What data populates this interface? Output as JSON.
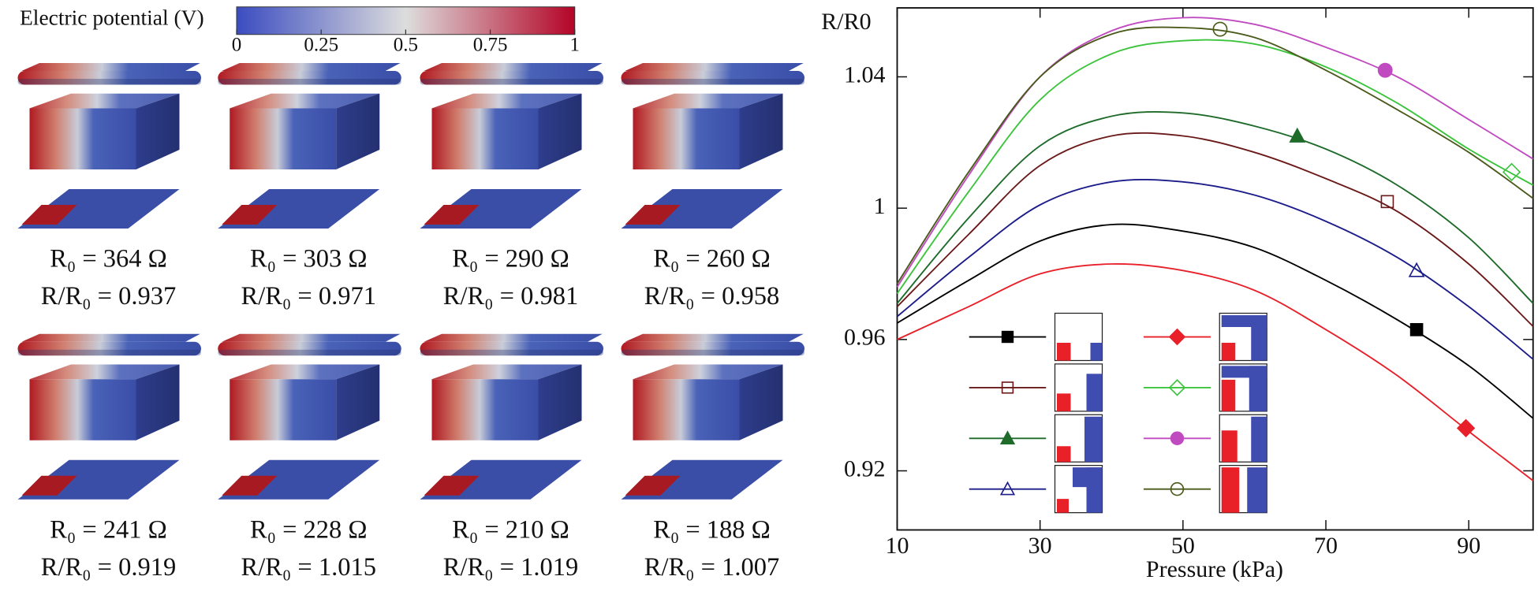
{
  "colorbar": {
    "title": "Electric potential (V)",
    "range": [
      0,
      1
    ],
    "ticks": [
      0,
      0.25,
      0.5,
      0.75,
      1
    ]
  },
  "panels": [
    {
      "r0": "R₀ = 364 Ω",
      "ratio": "R/R₀ = 0.937"
    },
    {
      "r0": "R₀ = 303 Ω",
      "ratio": "R/R₀ = 0.971"
    },
    {
      "r0": "R₀ = 290 Ω",
      "ratio": "R/R₀ = 0.981"
    },
    {
      "r0": "R₀ = 260 Ω",
      "ratio": "R/R₀ = 0.958"
    },
    {
      "r0": "R₀ = 241 Ω",
      "ratio": "R/R₀ = 0.919"
    },
    {
      "r0": "R₀ = 228 Ω",
      "ratio": "R/R₀ = 1.015"
    },
    {
      "r0": "R₀ = 210 Ω",
      "ratio": "R/R₀ = 1.019"
    },
    {
      "r0": "R₀ = 188 Ω",
      "ratio": "R/R₀ = 1.007"
    }
  ],
  "chart_data": {
    "type": "line",
    "y_label": "R/R0",
    "x_label": "Pressure (kPa)",
    "xlim": [
      10,
      99
    ],
    "xticks": [
      10,
      30,
      50,
      70,
      90
    ],
    "ylim": [
      0.902,
      1.061
    ],
    "yticks": [
      0.92,
      0.96,
      1,
      1.04
    ],
    "x": [
      10,
      20,
      30,
      40,
      50,
      60,
      70,
      80,
      90,
      99
    ],
    "series": [
      {
        "color": "#000000",
        "marker": "square",
        "filled": true,
        "values": [
          0.965,
          0.978,
          0.99,
          0.995,
          0.993,
          0.988,
          0.978,
          0.966,
          0.952,
          0.936
        ],
        "marker_x": 82.7,
        "marker_y": 0.963
      },
      {
        "color": "#6b1a1a",
        "marker": "square",
        "filled": false,
        "values": [
          0.97,
          0.992,
          1.013,
          1.022,
          1.022,
          1.017,
          1.009,
          0.999,
          0.983,
          0.964
        ],
        "marker_x": 78.6,
        "marker_y": 1.002
      },
      {
        "color": "#1e6b2a",
        "marker": "triangle",
        "filled": true,
        "values": [
          0.971,
          0.997,
          1.019,
          1.028,
          1.029,
          1.025,
          1.018,
          1.007,
          0.991,
          0.971
        ],
        "marker_x": 66,
        "marker_y": 1.022
      },
      {
        "color": "#1c1c8a",
        "marker": "triangle",
        "filled": false,
        "values": [
          0.967,
          0.985,
          1.001,
          1.008,
          1.008,
          1.004,
          0.996,
          0.985,
          0.97,
          0.954
        ],
        "marker_x": 82.7,
        "marker_y": 0.981
      },
      {
        "color": "#e8202a",
        "marker": "diamond",
        "filled": true,
        "values": [
          0.96,
          0.97,
          0.98,
          0.983,
          0.981,
          0.975,
          0.963,
          0.949,
          0.932,
          0.917
        ],
        "marker_x": 89.6,
        "marker_y": 0.933
      },
      {
        "color": "#3cc43c",
        "marker": "diamond",
        "filled": false,
        "values": [
          0.974,
          1.005,
          1.033,
          1.047,
          1.051,
          1.05,
          1.043,
          1.032,
          1.018,
          1.007
        ],
        "marker_x": 96,
        "marker_y": 1.011
      },
      {
        "color": "#c04ac0",
        "marker": "circle",
        "filled": true,
        "values": [
          0.976,
          1.01,
          1.04,
          1.054,
          1.058,
          1.056,
          1.049,
          1.04,
          1.027,
          1.015
        ],
        "marker_x": 78.3,
        "marker_y": 1.042
      },
      {
        "color": "#4a5a1a",
        "marker": "circle",
        "filled": false,
        "values": [
          0.977,
          1.011,
          1.04,
          1.053,
          1.055,
          1.052,
          1.042,
          1.03,
          1.017,
          1.003
        ],
        "marker_x": 55.2,
        "marker_y": 1.0545
      }
    ]
  }
}
